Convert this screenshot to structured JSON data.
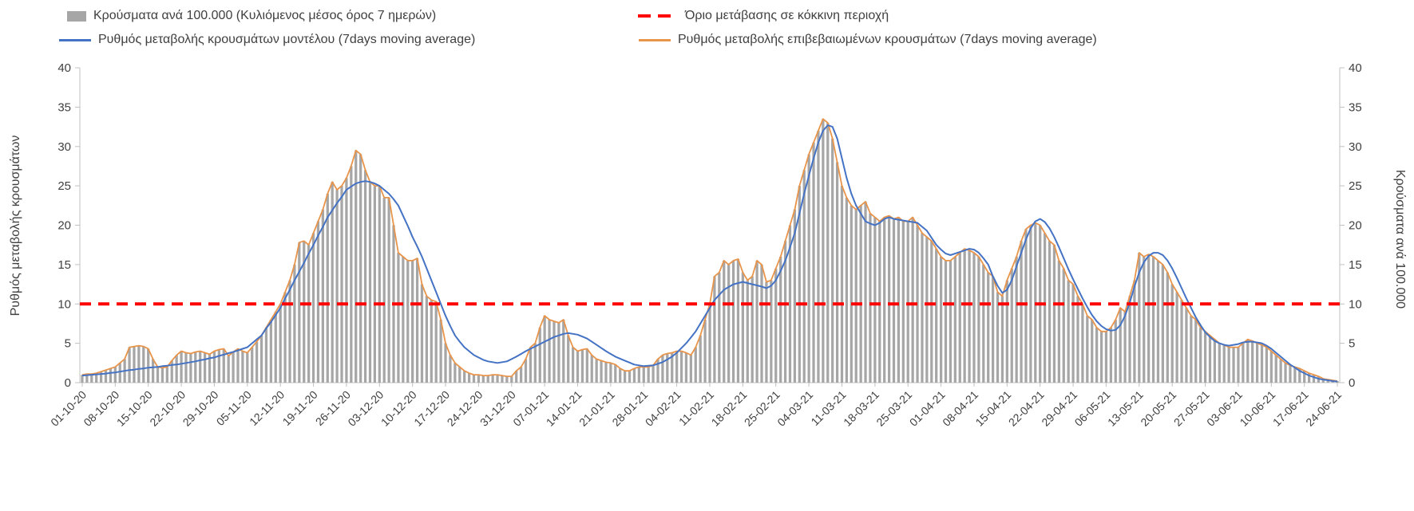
{
  "chart_data": {
    "type": "combo-bar-line",
    "x_unit": "daily",
    "n_points": 267,
    "x_tick_labels": [
      "01-10-20",
      "08-10-20",
      "15-10-20",
      "22-10-20",
      "29-10-20",
      "05-11-20",
      "12-11-20",
      "19-11-20",
      "26-11-20",
      "03-12-20",
      "10-12-20",
      "17-12-20",
      "24-12-20",
      "31-12-20",
      "07-01-21",
      "14-01-21",
      "21-01-21",
      "28-01-21",
      "04-02-21",
      "11-02-21",
      "18-02-21",
      "25-02-21",
      "04-03-21",
      "11-03-21",
      "18-03-21",
      "25-03-21",
      "01-04-21",
      "08-04-21",
      "15-04-21",
      "22-04-21",
      "29-04-21",
      "06-05-21",
      "13-05-21",
      "20-05-21",
      "27-05-21",
      "03-06-21",
      "10-06-21",
      "17-06-21",
      "24-06-21"
    ],
    "ylim": [
      0,
      40
    ],
    "yticks": [
      0,
      5,
      10,
      15,
      20,
      25,
      30,
      35,
      40
    ],
    "ylabel_left": "Ρυθμός μεταβολής κρουσμάτων",
    "ylabel_right": "Κρούσματα ανά 100.000",
    "grid": false,
    "legend_position": "top",
    "threshold": {
      "label": "Όριο μετάβασης σε κόκκινη περιοχή",
      "value": 10,
      "color": "#ff0000",
      "style": "dashed"
    },
    "series": [
      {
        "name": "Κρούσματα ανά 100.000 (Κυλιόμενος μέσος όρος 7 ημερών)",
        "type": "bar",
        "axis": "right",
        "color": "#a6a6a6",
        "values": [
          1.0,
          1.1,
          1.1,
          1.2,
          1.4,
          1.6,
          1.8,
          2.0,
          2.5,
          3.0,
          4.5,
          4.6,
          4.7,
          4.6,
          4.3,
          3.0,
          2.0,
          1.9,
          2.0,
          2.8,
          3.5,
          4.0,
          3.8,
          3.7,
          3.9,
          4.0,
          3.8,
          3.6,
          4.0,
          4.2,
          4.3,
          3.4,
          3.9,
          4.3,
          4.0,
          3.8,
          4.5,
          5.2,
          6.0,
          7.0,
          8.0,
          9.0,
          10.0,
          11.5,
          13.0,
          15.0,
          17.8,
          18.0,
          17.5,
          19.0,
          20.5,
          22.0,
          24.0,
          25.5,
          24.5,
          25.0,
          26.0,
          27.5,
          29.5,
          29.0,
          27.0,
          25.5,
          25.0,
          25.0,
          23.5,
          23.5,
          20.0,
          16.5,
          16.0,
          15.5,
          15.5,
          15.8,
          12.5,
          11.0,
          10.5,
          10.3,
          8.0,
          5.0,
          3.5,
          2.5,
          2.0,
          1.5,
          1.2,
          1.0,
          1.0,
          0.9,
          0.9,
          1.0,
          1.0,
          0.9,
          0.8,
          0.8,
          1.5,
          2.0,
          3.0,
          4.5,
          5.0,
          7.0,
          8.5,
          8.0,
          7.8,
          7.6,
          8.0,
          6.0,
          4.5,
          4.0,
          4.2,
          4.3,
          3.5,
          3.0,
          2.8,
          2.6,
          2.5,
          2.3,
          1.8,
          1.5,
          1.5,
          1.8,
          2.0,
          2.0,
          2.0,
          2.2,
          3.0,
          3.5,
          3.7,
          3.8,
          4.0,
          4.0,
          3.8,
          3.5,
          4.5,
          6.0,
          8.0,
          10.0,
          13.5,
          14.0,
          15.5,
          15.0,
          15.5,
          15.7,
          14.0,
          13.0,
          13.5,
          15.5,
          15.0,
          12.8,
          13.0,
          14.5,
          16.0,
          18.0,
          20.0,
          22.0,
          25.0,
          27.0,
          29.0,
          30.5,
          32.0,
          33.5,
          33.0,
          31.0,
          28.0,
          25.0,
          23.5,
          22.5,
          22.0,
          22.5,
          23.0,
          21.5,
          21.0,
          20.5,
          21.0,
          21.2,
          20.8,
          21.0,
          20.5,
          20.5,
          21.0,
          20.0,
          19.0,
          18.5,
          18.0,
          17.0,
          16.0,
          15.5,
          15.5,
          16.0,
          16.5,
          17.0,
          16.8,
          16.5,
          16.0,
          15.0,
          14.0,
          13.5,
          11.5,
          11.0,
          13.0,
          14.5,
          16.0,
          18.0,
          19.5,
          20.0,
          20.3,
          20.0,
          19.0,
          18.0,
          17.5,
          15.5,
          14.5,
          13.0,
          12.5,
          11.0,
          10.0,
          8.5,
          8.0,
          7.0,
          6.5,
          6.5,
          7.0,
          8.0,
          9.5,
          9.0,
          11.0,
          13.0,
          16.5,
          16.0,
          16.3,
          16.0,
          15.5,
          15.0,
          14.0,
          12.5,
          11.5,
          10.5,
          9.5,
          8.5,
          8.0,
          7.0,
          6.5,
          6.0,
          5.5,
          5.0,
          4.8,
          4.5,
          4.5,
          4.5,
          5.0,
          5.5,
          5.3,
          5.0,
          4.8,
          4.5,
          4.0,
          3.5,
          3.0,
          2.5,
          2.2,
          2.0,
          1.8,
          1.5,
          1.2,
          1.0,
          0.8,
          0.5,
          0.4,
          0.3,
          0.2
        ]
      },
      {
        "name": "Ρυθμός μεταβολής κρουσμάτων μοντέλου (7days moving average)",
        "type": "line",
        "axis": "left",
        "color": "#4472c4",
        "values": [
          0.9,
          0.95,
          1.0,
          1.05,
          1.1,
          1.15,
          1.25,
          1.3,
          1.4,
          1.5,
          1.6,
          1.65,
          1.75,
          1.8,
          1.9,
          1.95,
          2.0,
          2.1,
          2.15,
          2.25,
          2.3,
          2.4,
          2.5,
          2.6,
          2.7,
          2.85,
          2.95,
          3.1,
          3.2,
          3.4,
          3.55,
          3.75,
          3.9,
          4.1,
          4.3,
          4.5,
          5.0,
          5.5,
          6.0,
          6.9,
          7.7,
          8.6,
          9.5,
          10.7,
          11.8,
          13.0,
          14.1,
          15.2,
          16.4,
          17.5,
          18.7,
          19.8,
          21.0,
          21.9,
          22.8,
          23.6,
          24.5,
          24.9,
          25.3,
          25.5,
          25.6,
          25.5,
          25.3,
          25.0,
          24.5,
          24.0,
          23.3,
          22.5,
          21.2,
          19.9,
          18.5,
          17.3,
          16.0,
          14.5,
          13.0,
          11.5,
          10.0,
          8.5,
          7.2,
          6.0,
          5.2,
          4.5,
          4.0,
          3.5,
          3.2,
          2.9,
          2.7,
          2.6,
          2.5,
          2.6,
          2.7,
          3.0,
          3.3,
          3.65,
          4.0,
          4.3,
          4.6,
          4.9,
          5.2,
          5.5,
          5.8,
          6.0,
          6.2,
          6.3,
          6.2,
          6.1,
          5.85,
          5.6,
          5.2,
          4.8,
          4.4,
          4.0,
          3.65,
          3.3,
          3.05,
          2.8,
          2.55,
          2.3,
          2.2,
          2.1,
          2.15,
          2.2,
          2.4,
          2.6,
          2.95,
          3.3,
          3.8,
          4.4,
          5.0,
          5.75,
          6.5,
          7.5,
          8.5,
          9.5,
          10.5,
          11.15,
          11.8,
          12.15,
          12.5,
          12.65,
          12.8,
          12.65,
          12.5,
          12.35,
          12.2,
          12.0,
          12.3,
          13.0,
          14.2,
          15.5,
          17.2,
          19.0,
          21.5,
          24.0,
          26.3,
          28.5,
          30.5,
          32.0,
          32.7,
          32.5,
          31.0,
          28.5,
          26.0,
          24.0,
          22.5,
          21.5,
          20.5,
          20.2,
          20.0,
          20.3,
          20.8,
          21.0,
          20.8,
          20.7,
          20.6,
          20.5,
          20.4,
          20.3,
          19.8,
          19.3,
          18.4,
          17.5,
          16.9,
          16.4,
          16.2,
          16.4,
          16.6,
          16.8,
          17.0,
          16.9,
          16.5,
          15.8,
          15.0,
          13.5,
          12.3,
          11.4,
          11.8,
          13.0,
          14.8,
          16.5,
          18.2,
          19.6,
          20.5,
          20.8,
          20.4,
          19.6,
          18.5,
          17.2,
          15.8,
          14.4,
          13.1,
          11.9,
          10.7,
          9.6,
          8.6,
          7.8,
          7.2,
          6.8,
          6.6,
          6.7,
          7.3,
          8.5,
          10.2,
          12.2,
          14.0,
          15.3,
          16.1,
          16.5,
          16.5,
          16.2,
          15.5,
          14.5,
          13.3,
          12.0,
          10.7,
          9.5,
          8.3,
          7.3,
          6.4,
          5.8,
          5.3,
          5.0,
          4.8,
          4.7,
          4.8,
          4.9,
          5.1,
          5.2,
          5.2,
          5.1,
          5.0,
          4.7,
          4.3,
          3.8,
          3.3,
          2.8,
          2.3,
          1.9,
          1.5,
          1.2,
          0.9,
          0.7,
          0.5,
          0.4,
          0.3,
          0.2,
          0.15
        ]
      },
      {
        "name": "Ρυθμός μεταβολής επιβεβαιωμένων κρουσμάτων (7days moving average)",
        "type": "line",
        "axis": "left",
        "color": "#e8944a",
        "values": [
          1.0,
          1.1,
          1.1,
          1.2,
          1.4,
          1.6,
          1.8,
          2.0,
          2.5,
          3.0,
          4.5,
          4.6,
          4.7,
          4.6,
          4.3,
          3.0,
          2.0,
          1.9,
          2.0,
          2.8,
          3.5,
          4.0,
          3.8,
          3.7,
          3.9,
          4.0,
          3.8,
          3.6,
          4.0,
          4.2,
          4.3,
          3.4,
          3.9,
          4.3,
          4.0,
          3.8,
          4.5,
          5.2,
          6.0,
          7.0,
          8.0,
          9.0,
          10.0,
          11.5,
          13.0,
          15.0,
          17.8,
          18.0,
          17.5,
          19.0,
          20.5,
          22.0,
          24.0,
          25.5,
          24.5,
          25.0,
          26.0,
          27.5,
          29.5,
          29.0,
          27.0,
          25.5,
          25.0,
          25.0,
          23.5,
          23.5,
          20.0,
          16.5,
          16.0,
          15.5,
          15.5,
          15.8,
          12.5,
          11.0,
          10.5,
          10.3,
          8.0,
          5.0,
          3.5,
          2.5,
          2.0,
          1.5,
          1.2,
          1.0,
          1.0,
          0.9,
          0.9,
          1.0,
          1.0,
          0.9,
          0.8,
          0.8,
          1.5,
          2.0,
          3.0,
          4.5,
          5.0,
          7.0,
          8.5,
          8.0,
          7.8,
          7.6,
          8.0,
          6.0,
          4.5,
          4.0,
          4.2,
          4.3,
          3.5,
          3.0,
          2.8,
          2.6,
          2.5,
          2.3,
          1.8,
          1.5,
          1.5,
          1.8,
          2.0,
          2.0,
          2.0,
          2.2,
          3.0,
          3.5,
          3.7,
          3.8,
          4.0,
          4.0,
          3.8,
          3.5,
          4.5,
          6.0,
          8.0,
          10.0,
          13.5,
          14.0,
          15.5,
          15.0,
          15.5,
          15.7,
          14.0,
          13.0,
          13.5,
          15.5,
          15.0,
          12.8,
          13.0,
          14.5,
          16.0,
          18.0,
          20.0,
          22.0,
          25.0,
          27.0,
          29.0,
          30.5,
          32.0,
          33.5,
          33.0,
          31.0,
          28.0,
          25.0,
          23.5,
          22.5,
          22.0,
          22.5,
          23.0,
          21.5,
          21.0,
          20.5,
          21.0,
          21.2,
          20.8,
          21.0,
          20.5,
          20.5,
          21.0,
          20.0,
          19.0,
          18.5,
          18.0,
          17.0,
          16.0,
          15.5,
          15.5,
          16.0,
          16.5,
          17.0,
          16.8,
          16.5,
          16.0,
          15.0,
          14.0,
          13.5,
          11.5,
          11.0,
          13.0,
          14.5,
          16.0,
          18.0,
          19.5,
          20.0,
          20.3,
          20.0,
          19.0,
          18.0,
          17.5,
          15.5,
          14.5,
          13.0,
          12.5,
          11.0,
          10.0,
          8.5,
          8.0,
          7.0,
          6.5,
          6.5,
          7.0,
          8.0,
          9.5,
          9.0,
          11.0,
          13.0,
          16.5,
          16.0,
          16.3,
          16.0,
          15.5,
          15.0,
          14.0,
          12.5,
          11.5,
          10.5,
          9.5,
          8.5,
          8.0,
          7.0,
          6.5,
          6.0,
          5.5,
          5.0,
          4.8,
          4.5,
          4.5,
          4.5,
          5.0,
          5.5,
          5.3,
          5.0,
          4.8,
          4.5,
          4.0,
          3.5,
          3.0,
          2.5,
          2.2,
          2.0,
          1.8,
          1.5,
          1.2,
          1.0,
          0.8,
          0.5,
          0.4,
          0.3,
          0.2
        ]
      }
    ]
  }
}
